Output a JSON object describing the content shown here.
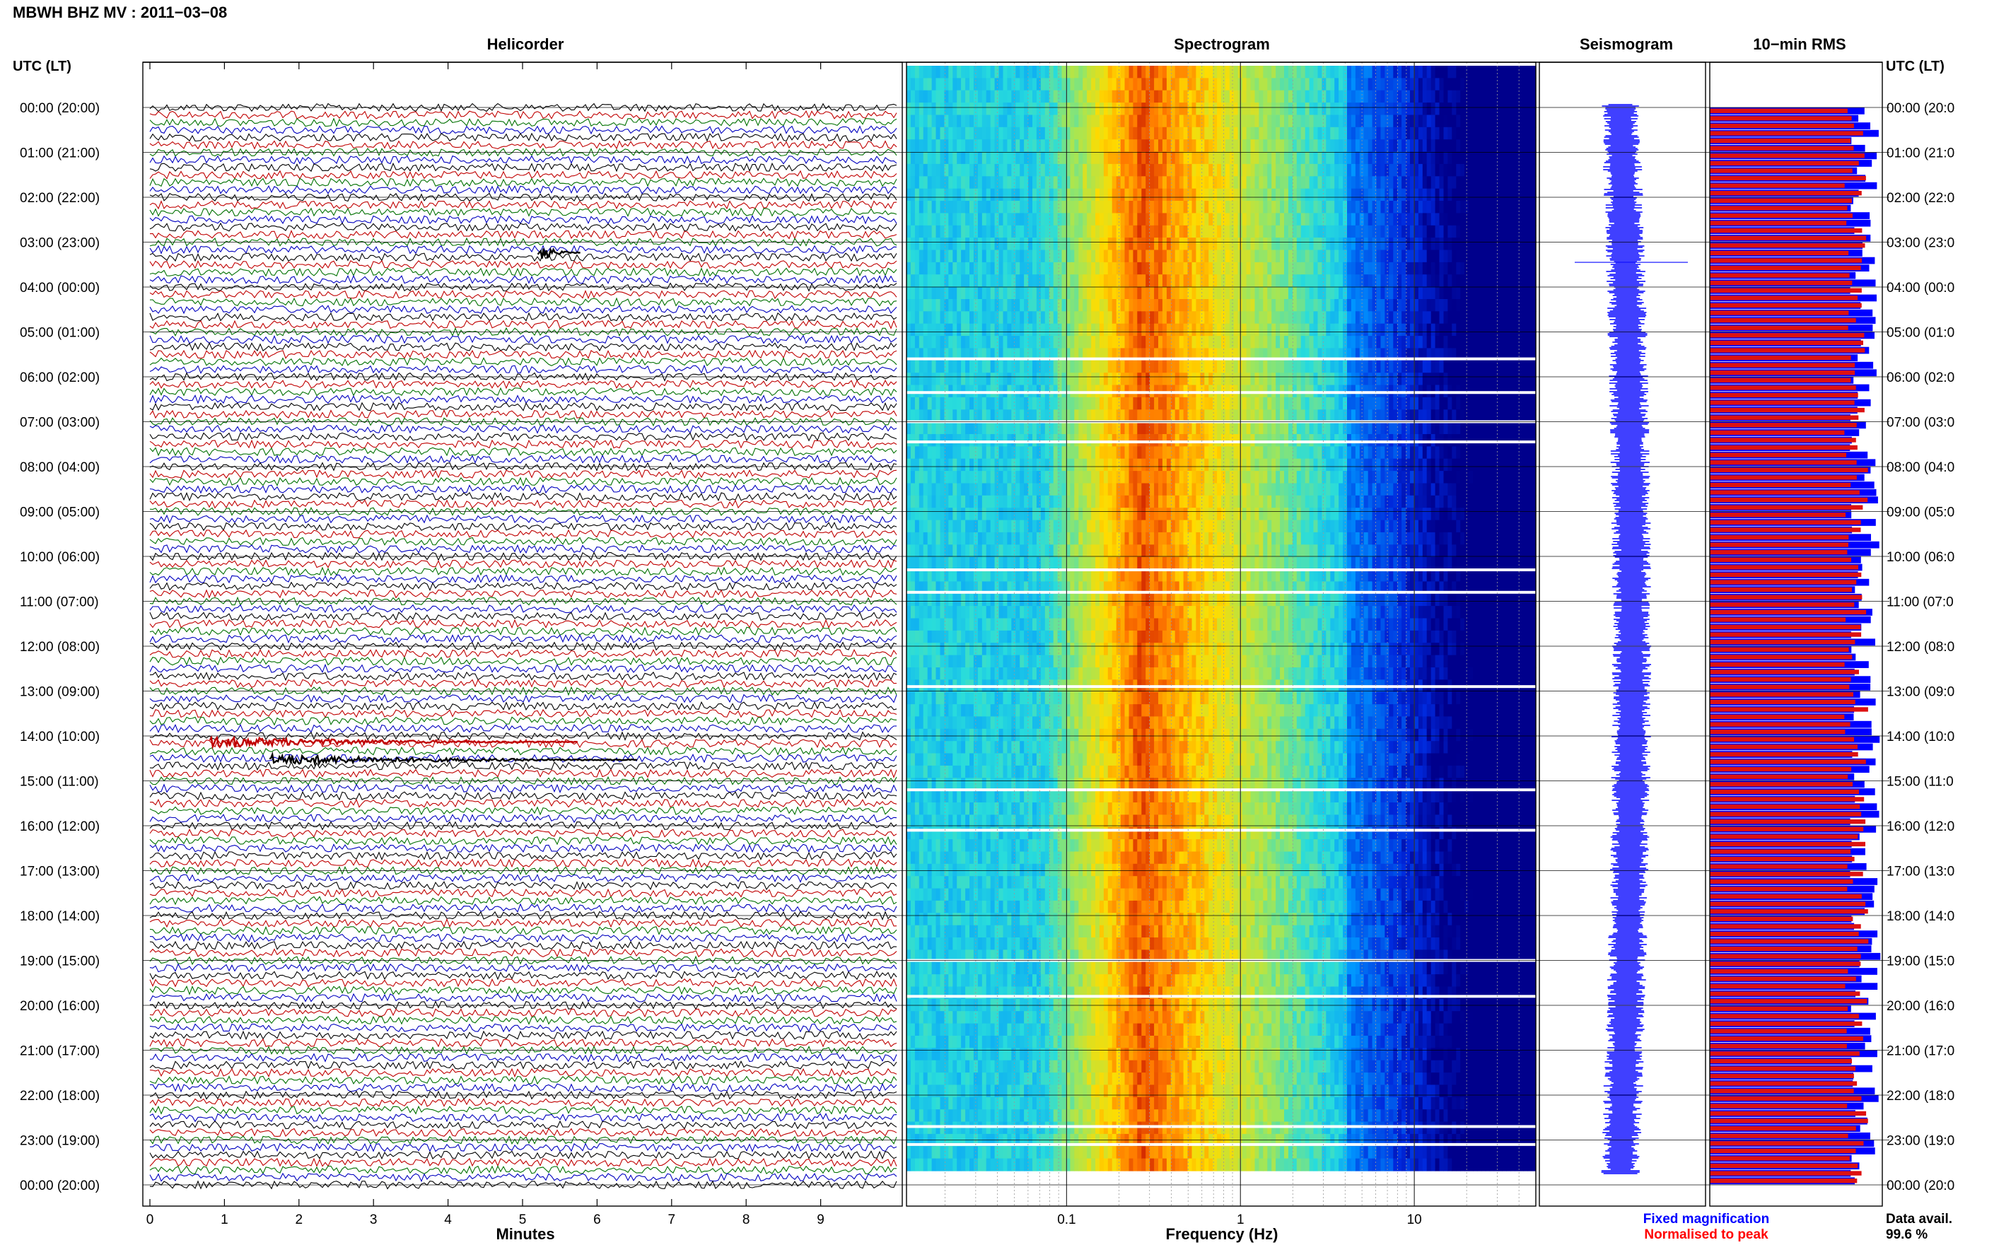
{
  "header": {
    "title": "MBWH BHZ MV : 2011−03−08",
    "time_axis_label": "UTC (LT)"
  },
  "panels": {
    "helicorder": "Helicorder",
    "spectrogram": "Spectrogram",
    "seismogram": "Seismogram",
    "rms": "10−min RMS"
  },
  "time_labels": [
    "00:00 (20:00)",
    "01:00 (21:00)",
    "02:00 (22:00)",
    "03:00 (23:00)",
    "04:00 (00:00)",
    "05:00 (01:00)",
    "06:00 (02:00)",
    "07:00 (03:00)",
    "08:00 (04:00)",
    "09:00 (05:00)",
    "10:00 (06:00)",
    "11:00 (07:00)",
    "12:00 (08:00)",
    "13:00 (09:00)",
    "14:00 (10:00)",
    "15:00 (11:00)",
    "16:00 (12:00)",
    "17:00 (13:00)",
    "18:00 (14:00)",
    "19:00 (15:00)",
    "20:00 (16:00)",
    "21:00 (17:00)",
    "22:00 (18:00)",
    "23:00 (19:00)",
    "00:00 (20:00)"
  ],
  "right_time_labels": [
    "00:00 (20:0",
    "01:00 (21:0",
    "02:00 (22:0",
    "03:00 (23:0",
    "04:00 (00:0",
    "05:00 (01:0",
    "06:00 (02:0",
    "07:00 (03:0",
    "08:00 (04:0",
    "09:00 (05:0",
    "10:00 (06:0",
    "11:00 (07:0",
    "12:00 (08:0",
    "13:00 (09:0",
    "14:00 (10:0",
    "15:00 (11:0",
    "16:00 (12:0",
    "17:00 (13:0",
    "18:00 (14:0",
    "19:00 (15:0",
    "20:00 (16:0",
    "21:00 (17:0",
    "22:00 (18:0",
    "23:00 (19:0",
    "00:00 (20:0"
  ],
  "helicorder_xaxis": {
    "label": "Minutes",
    "ticks": [
      "0",
      "1",
      "2",
      "3",
      "4",
      "5",
      "6",
      "7",
      "8",
      "9"
    ],
    "xlim": [
      0,
      10
    ]
  },
  "spectrogram_xaxis": {
    "label": "Frequency (Hz)",
    "ticks": [
      "0.1",
      "1",
      "10"
    ],
    "scale": "log",
    "xlim": [
      0.012,
      50
    ]
  },
  "legend": {
    "fixed": "Fixed magnification",
    "normalised": "Normalised to peak",
    "fixed_color": "#0000ff",
    "normalised_color": "#ff0000"
  },
  "availability": {
    "label": "Data avail.",
    "value": "99.6 %"
  },
  "colors": {
    "trace_cycle": [
      "#000000",
      "#c00000",
      "#007000",
      "#0000c0"
    ],
    "rms_fixed": "#0000ff",
    "rms_normalised": "#dd1111"
  },
  "chart_data": [
    {
      "type": "line",
      "name": "helicorder",
      "x_unit": "minutes",
      "xlim": [
        0,
        10
      ],
      "rows_per_hour": 6,
      "row_minutes": 10,
      "events": [
        {
          "hour": 3.2,
          "minute": 5.3,
          "amplitude": "large",
          "color": "#000000"
        },
        {
          "hour": 14.1,
          "minute": 0.9,
          "amplitude": "medium",
          "color": "#c00000"
        },
        {
          "hour": 14.5,
          "minute": 1.7,
          "amplitude": "medium",
          "color": "#000000"
        }
      ]
    },
    {
      "type": "heatmap",
      "name": "spectrogram",
      "x_scale": "log",
      "xlim": [
        0.012,
        50
      ],
      "peak_band_hz": [
        0.2,
        0.35
      ],
      "gap_hours": [
        5.6,
        6.35,
        7.0,
        7.45,
        10.3,
        10.8,
        12.9,
        15.2,
        16.1,
        19.0,
        19.8,
        23.1,
        22.7
      ]
    },
    {
      "type": "line",
      "name": "seismogram",
      "spike_hour": 3.45
    },
    {
      "type": "bar",
      "name": "10-min RMS",
      "interval_minutes": 10,
      "count": 144,
      "fixed_level_approx": 0.9,
      "normalised_level_approx": 0.85
    }
  ]
}
